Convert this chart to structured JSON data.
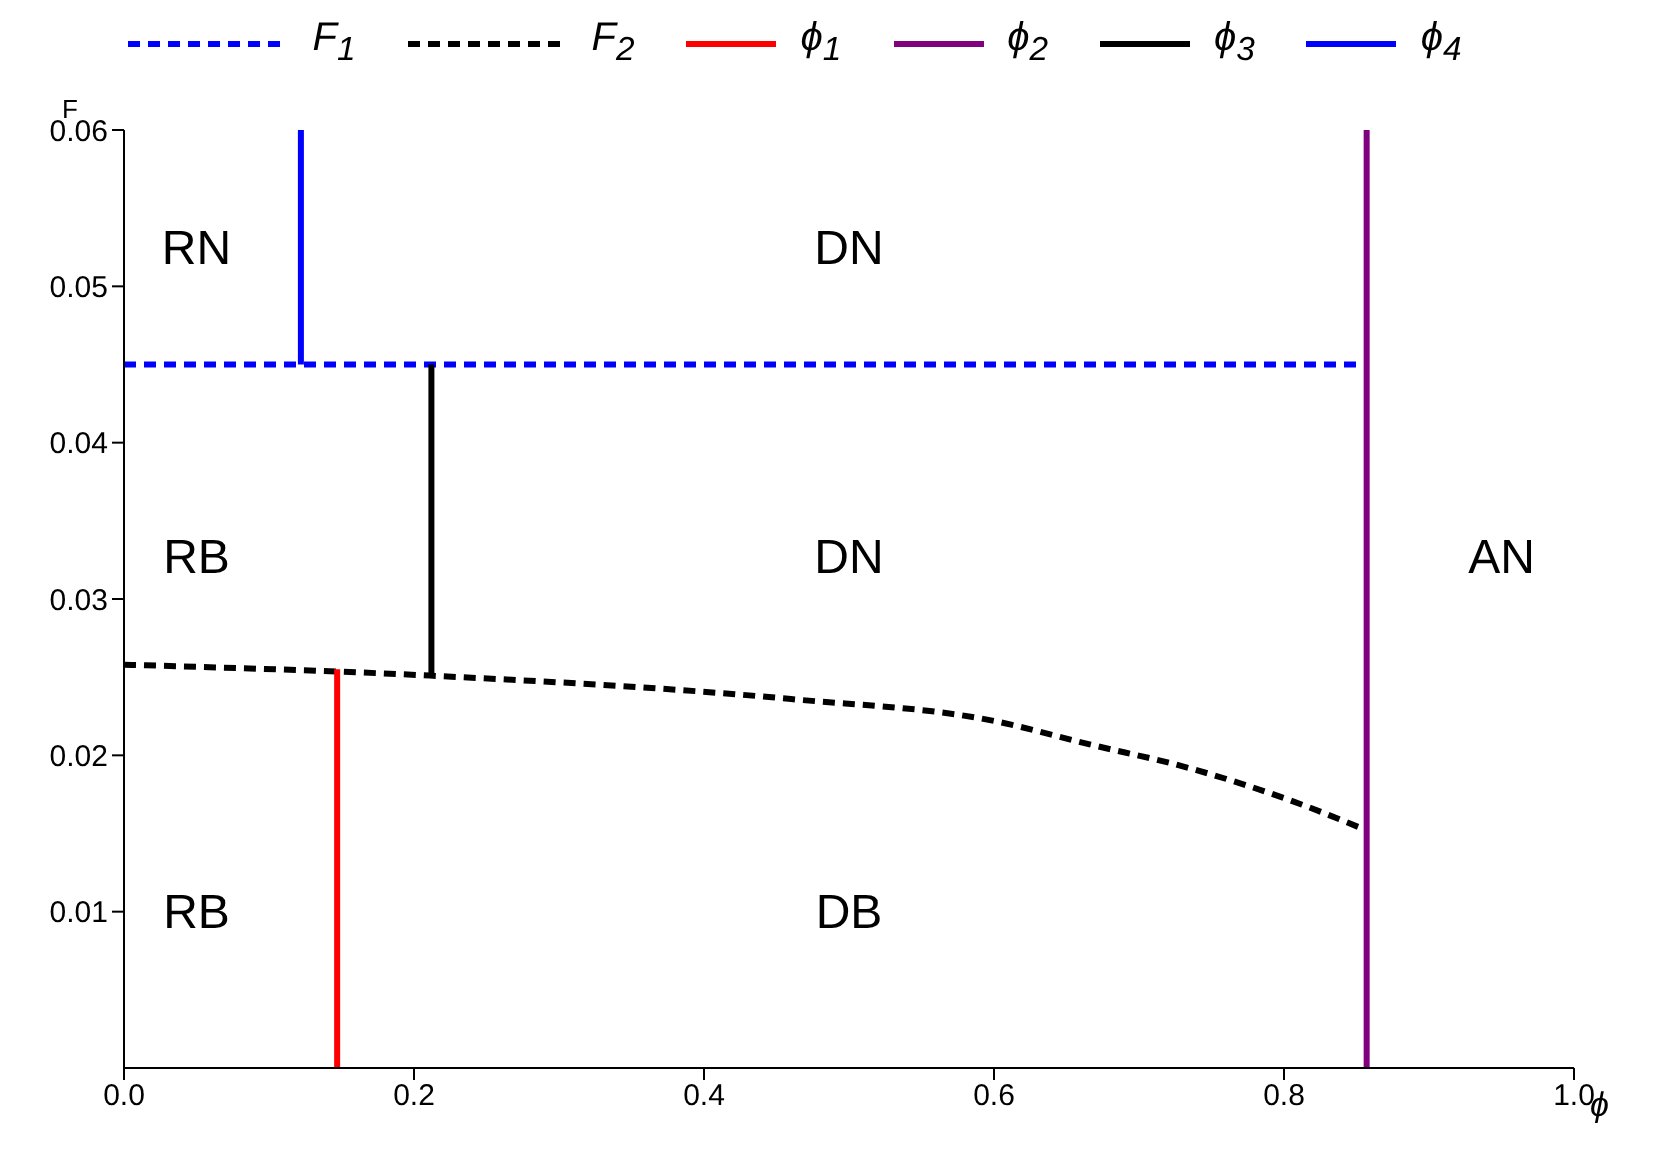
{
  "chart_data": {
    "type": "line",
    "xlabel": "ϕ",
    "ylabel": "F",
    "xlim": [
      0,
      1
    ],
    "xticks": [
      {
        "value": 0,
        "label": "0.0"
      },
      {
        "value": 0.2,
        "label": "0.2"
      },
      {
        "value": 0.4,
        "label": "0.4"
      },
      {
        "value": 0.6,
        "label": "0.6"
      },
      {
        "value": 0.8,
        "label": "0.8"
      },
      {
        "value": 1,
        "label": "1.0"
      }
    ],
    "ylim": [
      0,
      0.06
    ],
    "yticks": [
      0.01,
      0.02,
      0.03,
      0.04,
      0.05,
      0.06
    ],
    "grid": false,
    "legend": "top",
    "marker": "none",
    "series": [
      {
        "name": "F$_{1}$",
        "color": "#0000ff",
        "line_style": "dashed",
        "x": [
          0,
          0.855
        ],
        "values": [
          0.045,
          0.045
        ]
      },
      {
        "name": "F$_{2}$",
        "color": "#000000",
        "line_style": "dashed",
        "x": [
          0,
          0.211,
          0.46,
          0.6,
          0.666,
          0.734,
          0.802,
          0.857
        ],
        "values": [
          0.0258,
          0.0251,
          0.0236,
          0.0222,
          0.0207,
          0.0192,
          0.0172,
          0.0152
        ]
      },
      {
        "name": "ϕ$_{1}$",
        "color": "#ff0000",
        "line_style": "solid",
        "x": [
          0.147,
          0.147
        ],
        "values": [
          0,
          0.0255
        ]
      },
      {
        "name": "ϕ$_{2}$",
        "color": "#800080",
        "line_style": "solid",
        "x": [
          0.857,
          0.857
        ],
        "values": [
          0,
          0.06
        ]
      },
      {
        "name": "ϕ$_{3}$",
        "color": "#000000",
        "line_style": "solid",
        "x": [
          0.212,
          0.212
        ],
        "values": [
          0.0251,
          0.045
        ]
      },
      {
        "name": "ϕ$_{4}$",
        "color": "#0000ff",
        "line_style": "solid",
        "x": [
          0.122,
          0.122
        ],
        "values": [
          0.045,
          0.06
        ]
      }
    ],
    "annotations": [
      "RN",
      "DN",
      "RB",
      "DN",
      "AN",
      "RB",
      "DB"
    ]
  }
}
